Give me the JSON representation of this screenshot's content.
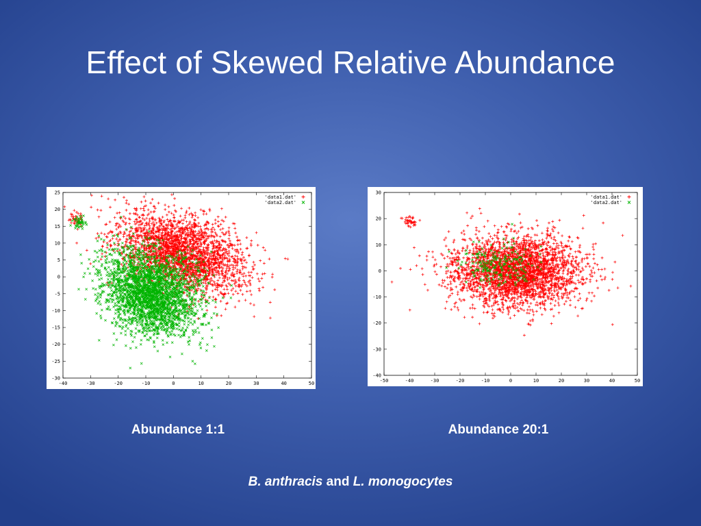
{
  "slide": {
    "title": "Effect of Skewed Relative Abundance",
    "captions": [
      "Abundance 1:1",
      "Abundance 20:1"
    ],
    "footnote": {
      "species1": "B. anthracis",
      "connector": "and",
      "species2": "L. monogocytes"
    }
  },
  "colors": {
    "series1": "#ff0000",
    "series2": "#00b400",
    "background_center": "#5b7bc6",
    "background_edge": "#223f8b"
  },
  "chart_data": [
    {
      "type": "scatter",
      "title": "",
      "xlabel": "",
      "ylabel": "",
      "xlim": [
        -40,
        50
      ],
      "ylim": [
        -30,
        25
      ],
      "xticks": [
        -40,
        -30,
        -20,
        -10,
        0,
        10,
        20,
        30,
        40,
        50
      ],
      "yticks": [
        -30,
        -25,
        -20,
        -15,
        -10,
        -5,
        0,
        5,
        10,
        15,
        20,
        25
      ],
      "grid": false,
      "legend_position": "top-right",
      "series": [
        {
          "name": "'data1.dat'",
          "marker": "+",
          "color": "#ff0000",
          "clusters": [
            {
              "cx": 3,
              "cy": 7,
              "sx": 12,
              "sy": 5.5,
              "n": 2600,
              "rot": -0.25
            },
            {
              "cx": -35,
              "cy": 17,
              "sx": 1.2,
              "sy": 1.0,
              "n": 40,
              "rot": 0
            }
          ]
        },
        {
          "name": "'data2.dat'",
          "marker": "x",
          "color": "#00b400",
          "clusters": [
            {
              "cx": -8,
              "cy": -5,
              "sx": 9,
              "sy": 6,
              "n": 2600,
              "rot": -0.35
            },
            {
              "cx": -34,
              "cy": 16,
              "sx": 1.2,
              "sy": 1.0,
              "n": 40,
              "rot": 0
            }
          ]
        }
      ]
    },
    {
      "type": "scatter",
      "title": "",
      "xlabel": "",
      "ylabel": "",
      "xlim": [
        -50,
        50
      ],
      "ylim": [
        -40,
        30
      ],
      "xticks": [
        -50,
        -40,
        -30,
        -20,
        -10,
        0,
        10,
        20,
        30,
        40,
        50
      ],
      "yticks": [
        -40,
        -30,
        -20,
        -10,
        0,
        10,
        20,
        30
      ],
      "grid": false,
      "legend_position": "top-right",
      "series": [
        {
          "name": "'data1.dat'",
          "marker": "+",
          "color": "#ff0000",
          "clusters": [
            {
              "cx": 2,
              "cy": 0,
              "sx": 13,
              "sy": 7,
              "n": 3000,
              "rot": 0
            },
            {
              "cx": -40,
              "cy": 19,
              "sx": 1.4,
              "sy": 1.1,
              "n": 40,
              "rot": 0
            }
          ]
        },
        {
          "name": "'data2.dat'",
          "marker": "x",
          "color": "#00b400",
          "clusters": [
            {
              "cx": -5,
              "cy": 2,
              "sx": 8,
              "sy": 4,
              "n": 200,
              "rot": 0
            }
          ]
        }
      ]
    }
  ]
}
